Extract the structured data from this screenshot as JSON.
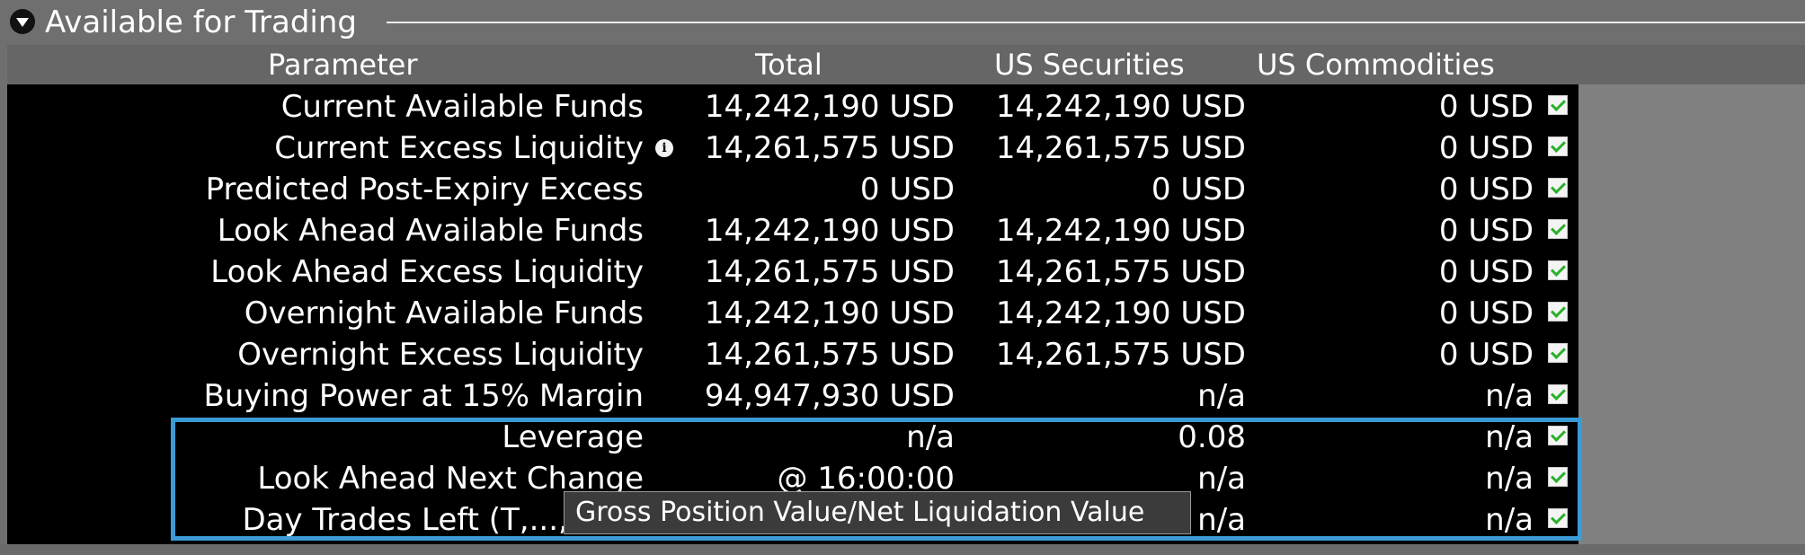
{
  "section": {
    "title": "Available for Trading",
    "toggle_icon": "triangle-down-icon"
  },
  "columns": {
    "parameter": "Parameter",
    "total": "Total",
    "us_securities": "US Securities",
    "us_commodities": "US Commodities"
  },
  "rows": [
    {
      "parameter": "Current Available Funds",
      "total": "14,242,190 USD",
      "us_securities": "14,242,190 USD",
      "us_commodities": "0 USD",
      "checked": true
    },
    {
      "parameter": "Current Excess Liquidity",
      "total": "14,261,575 USD",
      "us_securities": "14,261,575 USD",
      "us_commodities": "0 USD",
      "checked": true,
      "info_icon": "info-icon"
    },
    {
      "parameter": "Predicted Post-Expiry Excess",
      "total": "0 USD",
      "us_securities": "0 USD",
      "us_commodities": "0 USD",
      "checked": true
    },
    {
      "parameter": "Look Ahead Available Funds",
      "total": "14,242,190 USD",
      "us_securities": "14,242,190 USD",
      "us_commodities": "0 USD",
      "checked": true
    },
    {
      "parameter": "Look Ahead Excess Liquidity",
      "total": "14,261,575 USD",
      "us_securities": "14,261,575 USD",
      "us_commodities": "0 USD",
      "checked": true
    },
    {
      "parameter": "Overnight Available Funds",
      "total": "14,242,190 USD",
      "us_securities": "14,242,190 USD",
      "us_commodities": "0 USD",
      "checked": true
    },
    {
      "parameter": "Overnight Excess Liquidity",
      "total": "14,261,575 USD",
      "us_securities": "14,261,575 USD",
      "us_commodities": "0 USD",
      "checked": true
    },
    {
      "parameter": "Buying Power at 15% Margin",
      "total": "94,947,930 USD",
      "us_securities": "n/a",
      "us_commodities": "n/a",
      "checked": true
    },
    {
      "parameter": "Leverage",
      "total": "n/a",
      "us_securities": "0.08",
      "us_commodities": "n/a",
      "checked": true
    },
    {
      "parameter": "Look Ahead Next Change",
      "total": "@ 16:00:00",
      "us_securities": "n/a",
      "us_commodities": "n/a",
      "checked": true
    },
    {
      "parameter": "Day Trades Left (T,...,T+4)",
      "total": "",
      "us_securities": "n/a",
      "us_commodities": "n/a",
      "checked": true
    }
  ],
  "tooltip": {
    "text": "Gross Position Value/Net Liquidation Value"
  },
  "colors": {
    "highlight": "#3a9bd6",
    "check": "#2bb02b",
    "table_bg": "#000000",
    "panel_bg": "#6f6f6f"
  }
}
